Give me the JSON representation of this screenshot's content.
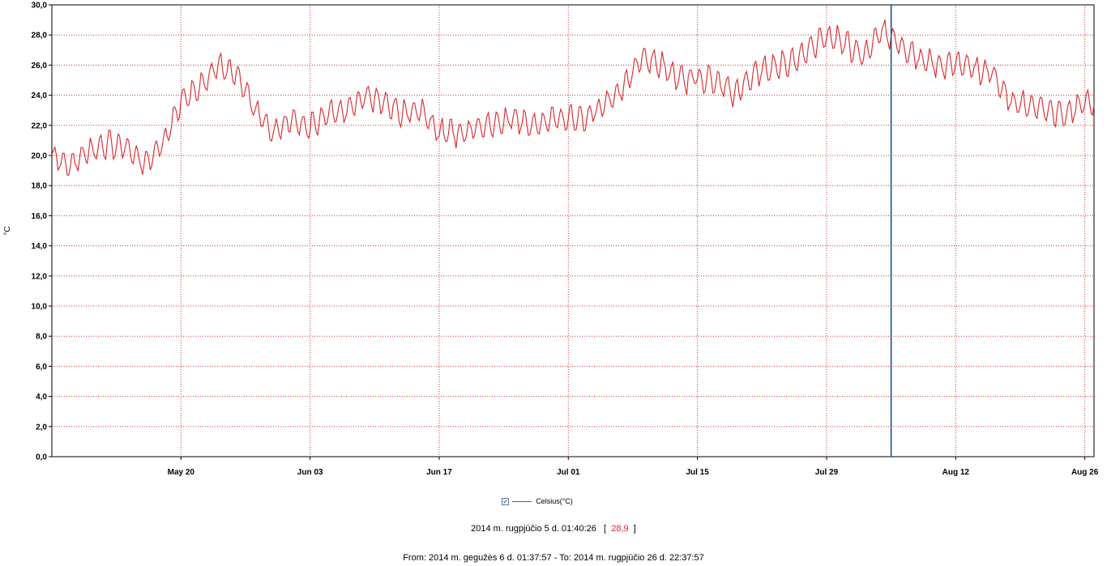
{
  "colors": {
    "series": "#d9262a",
    "grid": "#cc3333",
    "cursor": "#1f4e8c",
    "axis": "#000000"
  },
  "chart_data": {
    "type": "line",
    "ylabel": "°C",
    "ylim": [
      0,
      30
    ],
    "ytick_values": [
      0,
      2,
      4,
      6,
      8,
      10,
      12,
      14,
      16,
      18,
      20,
      22,
      24,
      26,
      28,
      30
    ],
    "ytick_labels": [
      "0,0",
      "2,0",
      "4,0",
      "6,0",
      "8,0",
      "10,0",
      "12,0",
      "14,0",
      "16,0",
      "18,0",
      "20,0",
      "22,0",
      "24,0",
      "26,0",
      "28,0",
      "30,0"
    ],
    "xlim": [
      "2014-05-06",
      "2014-08-27"
    ],
    "xtick_values": [
      "2014-05-20",
      "2014-06-03",
      "2014-06-17",
      "2014-07-01",
      "2014-07-15",
      "2014-07-29",
      "2014-08-12",
      "2014-08-26"
    ],
    "xtick_labels": [
      "May 20",
      "Jun 03",
      "Jun 17",
      "Jul 01",
      "Jul 15",
      "Jul 29",
      "Aug 12",
      "Aug 26"
    ],
    "grid": true,
    "cursor_x": "2014-08-05",
    "series": [
      {
        "name": "Celsius(°C)",
        "x": [
          "2014-05-06",
          "2014-05-08",
          "2014-05-10",
          "2014-05-12",
          "2014-05-14",
          "2014-05-16",
          "2014-05-18",
          "2014-05-20",
          "2014-05-22",
          "2014-05-24",
          "2014-05-26",
          "2014-05-28",
          "2014-05-30",
          "2014-06-01",
          "2014-06-03",
          "2014-06-05",
          "2014-06-07",
          "2014-06-09",
          "2014-06-11",
          "2014-06-13",
          "2014-06-15",
          "2014-06-17",
          "2014-06-19",
          "2014-06-21",
          "2014-06-23",
          "2014-06-25",
          "2014-06-27",
          "2014-06-29",
          "2014-07-01",
          "2014-07-03",
          "2014-07-05",
          "2014-07-07",
          "2014-07-09",
          "2014-07-11",
          "2014-07-13",
          "2014-07-15",
          "2014-07-17",
          "2014-07-19",
          "2014-07-21",
          "2014-07-23",
          "2014-07-25",
          "2014-07-27",
          "2014-07-29",
          "2014-07-31",
          "2014-08-02",
          "2014-08-04",
          "2014-08-06",
          "2014-08-08",
          "2014-08-10",
          "2014-08-12",
          "2014-08-14",
          "2014-08-16",
          "2014-08-18",
          "2014-08-20",
          "2014-08-22",
          "2014-08-24",
          "2014-08-26",
          "2014-08-27"
        ],
        "values": [
          20.0,
          19.3,
          20.3,
          20.7,
          20.5,
          19.6,
          20.7,
          23.5,
          24.5,
          26.0,
          25.5,
          23.0,
          21.5,
          22.5,
          21.8,
          22.8,
          23.0,
          24.0,
          23.5,
          22.8,
          23.0,
          21.5,
          21.5,
          21.8,
          22.0,
          22.5,
          22.0,
          22.3,
          22.5,
          22.5,
          23.5,
          24.5,
          26.5,
          26.0,
          25.0,
          25.2,
          25.0,
          24.0,
          25.5,
          25.8,
          26.2,
          27.0,
          28.0,
          27.5,
          26.5,
          28.3,
          27.3,
          26.5,
          26.0,
          26.2,
          25.8,
          25.5,
          23.5,
          23.4,
          23.0,
          22.8,
          23.5,
          23.5
        ]
      }
    ]
  },
  "legend": {
    "checkbox_mark": "✓",
    "label": "Celsius(°C)"
  },
  "cursor_readout": {
    "timestamp": "2014 m. rugpjūčio 5 d. 01:40:26",
    "value": "28,9",
    "bracket_open": "[",
    "bracket_close": "]"
  },
  "range": {
    "text": "From: 2014 m. gegužės 6 d. 01:37:57  -  To: 2014 m. rugpjūčio 26 d. 22:37:57"
  }
}
